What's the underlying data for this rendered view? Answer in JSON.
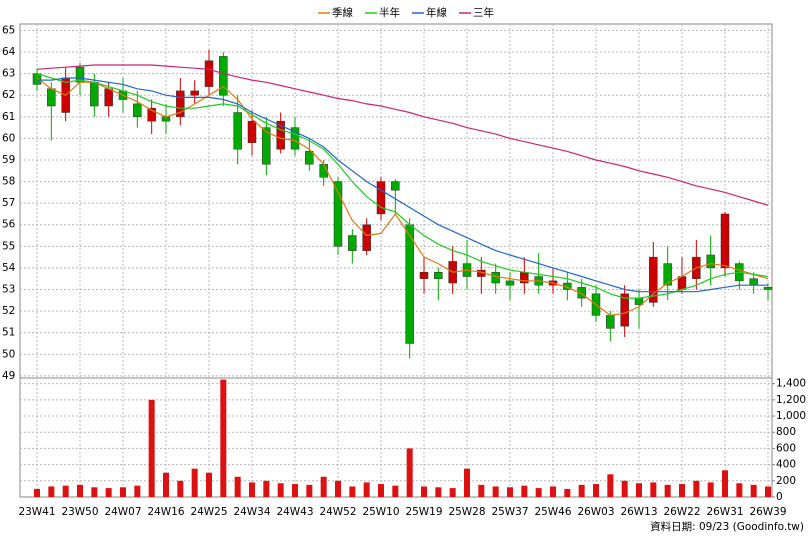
{
  "chart_data": {
    "type": "candlestick",
    "categories": [
      "23W41",
      null,
      null,
      "23W50",
      null,
      null,
      "24W07",
      null,
      null,
      "24W16",
      null,
      null,
      "24W25",
      null,
      null,
      "24W34",
      null,
      null,
      "24W43",
      null,
      null,
      "24W52",
      null,
      null,
      "25W10",
      null,
      null,
      "25W19",
      null,
      null,
      "25W28",
      null,
      null,
      "25W37",
      null,
      null,
      "25W46",
      null,
      null,
      "26W03",
      null,
      null,
      "26W13",
      null,
      null,
      "26W22",
      null,
      null,
      "26W31",
      null,
      null,
      "26W39"
    ],
    "open": [
      63.0,
      62.3,
      61.2,
      63.3,
      62.6,
      61.5,
      62.2,
      61.6,
      60.8,
      61.0,
      61.0,
      62.0,
      62.4,
      63.8,
      61.2,
      59.8,
      60.5,
      59.5,
      60.5,
      59.4,
      58.8,
      58.0,
      55.5,
      54.8,
      56.5,
      58.0,
      56.0,
      53.5,
      53.8,
      53.3,
      54.2,
      53.6,
      53.8,
      53.4,
      53.3,
      53.6,
      53.2,
      53.3,
      53.1,
      52.8,
      51.8,
      51.3,
      52.6,
      52.4,
      54.2,
      53.0,
      53.5,
      54.6,
      54.0,
      54.2,
      53.5,
      53.1
    ],
    "high": [
      63.2,
      62.6,
      63.3,
      63.5,
      63.0,
      62.6,
      62.8,
      62.2,
      61.8,
      61.6,
      62.8,
      62.7,
      64.1,
      64.0,
      62.0,
      61.3,
      61.0,
      61.2,
      61.0,
      60.0,
      59.0,
      58.2,
      55.8,
      56.3,
      58.2,
      58.1,
      56.3,
      54.5,
      54.0,
      55.0,
      55.3,
      54.5,
      54.2,
      53.8,
      54.5,
      54.7,
      54.0,
      53.8,
      53.5,
      53.2,
      52.0,
      53.2,
      53.0,
      55.2,
      55.0,
      54.5,
      55.3,
      55.5,
      56.6,
      54.3,
      53.8,
      53.3
    ],
    "low": [
      62.2,
      59.9,
      60.8,
      62.0,
      61.0,
      61.0,
      61.2,
      60.5,
      60.2,
      60.2,
      60.6,
      61.6,
      62.0,
      61.5,
      58.8,
      59.2,
      58.3,
      59.3,
      59.2,
      58.5,
      57.8,
      54.6,
      54.2,
      54.6,
      56.2,
      56.5,
      49.8,
      52.8,
      52.5,
      52.8,
      53.0,
      52.8,
      52.8,
      52.5,
      52.8,
      52.8,
      52.8,
      52.5,
      52.2,
      51.5,
      50.6,
      50.8,
      51.2,
      52.2,
      52.5,
      52.8,
      53.0,
      53.2,
      53.6,
      53.0,
      52.8,
      52.5
    ],
    "close": [
      62.5,
      61.5,
      62.8,
      62.6,
      61.5,
      62.3,
      61.8,
      61.0,
      61.4,
      60.8,
      62.2,
      62.2,
      63.6,
      62.0,
      59.5,
      60.8,
      58.8,
      60.8,
      59.5,
      58.8,
      58.2,
      55.0,
      54.8,
      56.0,
      58.0,
      57.6,
      50.5,
      53.8,
      53.5,
      54.3,
      53.6,
      53.9,
      53.3,
      53.2,
      53.8,
      53.2,
      53.4,
      53.0,
      52.6,
      51.8,
      51.2,
      52.8,
      52.3,
      54.5,
      53.2,
      53.6,
      54.5,
      54.0,
      56.5,
      53.4,
      53.2,
      53.0
    ],
    "up_color": "#cc0000",
    "down_color": "#00aa00",
    "series": [
      {
        "name": "季線",
        "color": "#e07a10",
        "values": [
          62.8,
          62.3,
          62.0,
          62.6,
          62.6,
          62.3,
          62.0,
          61.7,
          61.3,
          61.0,
          61.2,
          61.6,
          62.0,
          62.4,
          61.8,
          60.9,
          60.3,
          60.0,
          59.9,
          59.5,
          58.8,
          57.5,
          56.2,
          55.5,
          55.6,
          56.5,
          55.5,
          54.5,
          54.2,
          53.8,
          53.9,
          53.8,
          53.6,
          53.5,
          53.4,
          53.4,
          53.3,
          53.1,
          52.8,
          52.3,
          51.8,
          51.9,
          52.2,
          52.8,
          53.3,
          53.6,
          54.0,
          54.2,
          54.1,
          53.9,
          53.7,
          53.5
        ]
      },
      {
        "name": "半年",
        "color": "#22cc22",
        "values": [
          63.0,
          62.8,
          62.6,
          62.7,
          62.6,
          62.4,
          62.2,
          62.0,
          61.7,
          61.5,
          61.4,
          61.4,
          61.5,
          61.6,
          61.5,
          61.1,
          60.7,
          60.4,
          60.2,
          59.9,
          59.5,
          58.8,
          58.0,
          57.3,
          56.8,
          56.6,
          56.0,
          55.5,
          55.1,
          54.8,
          54.6,
          54.3,
          54.1,
          53.9,
          53.8,
          53.7,
          53.6,
          53.5,
          53.3,
          53.1,
          52.8,
          52.6,
          52.6,
          52.7,
          52.8,
          53.0,
          53.2,
          53.5,
          53.7,
          53.8,
          53.7,
          53.6
        ]
      },
      {
        "name": "年線",
        "color": "#2266cc",
        "values": [
          62.7,
          62.7,
          62.8,
          62.8,
          62.7,
          62.6,
          62.5,
          62.3,
          62.2,
          62.0,
          61.9,
          61.9,
          61.9,
          61.8,
          61.6,
          61.2,
          60.9,
          60.6,
          60.3,
          60.0,
          59.6,
          59.0,
          58.5,
          58.0,
          57.6,
          57.2,
          56.8,
          56.4,
          56.0,
          55.7,
          55.4,
          55.1,
          54.8,
          54.6,
          54.4,
          54.2,
          54.0,
          53.8,
          53.6,
          53.4,
          53.2,
          53.0,
          52.9,
          52.9,
          52.9,
          52.9,
          52.9,
          53.0,
          53.1,
          53.2,
          53.2,
          53.2
        ]
      },
      {
        "name": "三年",
        "color": "#cc2277",
        "values": [
          63.2,
          63.25,
          63.3,
          63.35,
          63.4,
          63.4,
          63.4,
          63.4,
          63.4,
          63.35,
          63.3,
          63.25,
          63.2,
          63.0,
          62.85,
          62.7,
          62.6,
          62.45,
          62.3,
          62.15,
          62.0,
          61.85,
          61.75,
          61.6,
          61.5,
          61.35,
          61.2,
          61.0,
          60.85,
          60.7,
          60.5,
          60.35,
          60.2,
          60.0,
          59.85,
          59.7,
          59.55,
          59.4,
          59.2,
          59.0,
          58.85,
          58.7,
          58.5,
          58.35,
          58.2,
          58.0,
          57.8,
          57.65,
          57.5,
          57.3,
          57.1,
          56.9
        ]
      }
    ],
    "ylim": [
      48.9,
      65.3
    ],
    "yticks": [
      49,
      50,
      51,
      52,
      53,
      54,
      55,
      56,
      57,
      58,
      59,
      60,
      61,
      62,
      63,
      64,
      65
    ],
    "grid": true,
    "volume": {
      "color": "#dd1111",
      "values": [
        100,
        130,
        140,
        150,
        120,
        110,
        120,
        140,
        1200,
        300,
        200,
        350,
        300,
        1450,
        250,
        180,
        200,
        170,
        160,
        150,
        250,
        200,
        130,
        180,
        160,
        140,
        600,
        130,
        120,
        110,
        350,
        150,
        130,
        120,
        140,
        110,
        130,
        100,
        150,
        160,
        280,
        200,
        170,
        180,
        150,
        160,
        200,
        180,
        330,
        170,
        150,
        130
      ],
      "ylim": [
        0,
        1470
      ],
      "yticks": [
        0,
        {
          "value": 200,
          "label": "200"
        },
        400,
        600,
        800,
        {
          "value": 1000,
          "label": "1,000"
        },
        {
          "value": 1200,
          "label": "1,200"
        },
        {
          "value": 1400,
          "label": "1,400"
        }
      ]
    },
    "note": "資料日期: 09/23  (Goodinfo.tw)"
  }
}
